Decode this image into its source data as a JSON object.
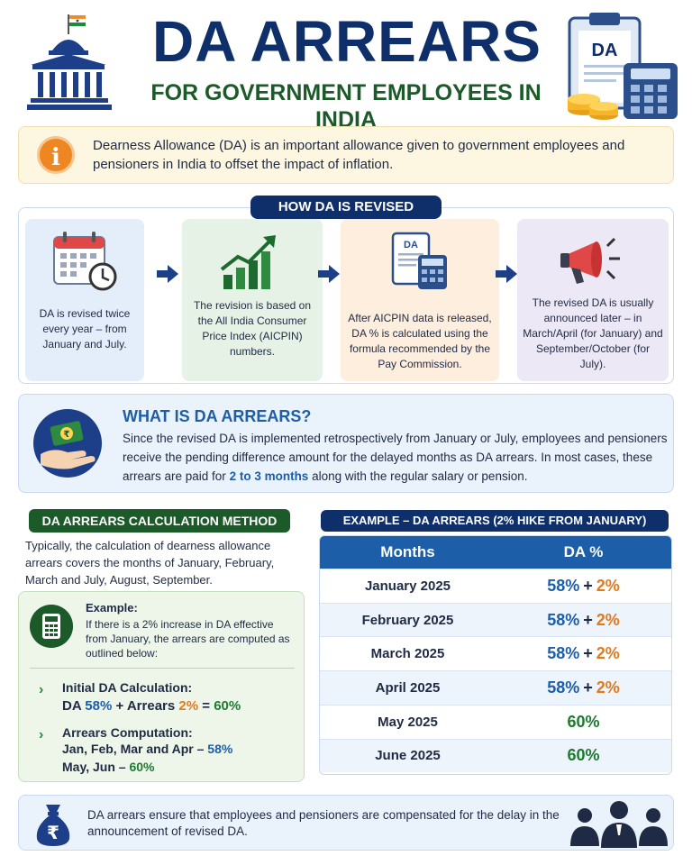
{
  "header": {
    "title": "DA ARREARS",
    "subtitle": "FOR GOVERNMENT EMPLOYEES IN INDIA",
    "clipboard_label": "DA"
  },
  "intro": {
    "icon": "info-icon",
    "text": "Dearness Allowance (DA) is an important allowance given to government employees and pensioners in India to offset the impact of inflation."
  },
  "how": {
    "title": "HOW DA IS REVISED",
    "steps": [
      {
        "icon": "calendar-icon",
        "text": "DA is revised twice every year – from January and July."
      },
      {
        "icon": "growth-chart-icon",
        "text": "The revision is based on the All India Consumer Price Index (AICPIN) numbers."
      },
      {
        "icon": "calculator-document-icon",
        "text": "After AICPIN data is released, DA % is calculated using the formula recommended by the Pay Commission."
      },
      {
        "icon": "megaphone-icon",
        "text": "The revised DA is usually announced later – in March/April (for January) and September/October (for July)."
      }
    ],
    "doc_label": "DA"
  },
  "what": {
    "title": "WHAT IS DA ARREARS?",
    "text_before": "Since the revised DA is implemented retrospectively from January or July, employees and pensioners receive the pending difference amount for the delayed months as DA arrears. In most cases, these arrears are paid for ",
    "highlight": "2 to 3 months",
    "text_after": " along with the regular salary or pension."
  },
  "calc": {
    "title": "DA ARREARS CALCULATION METHOD",
    "intro": "Typically, the calculation of dearness allowance arrears covers the months of January, February, March and July, August, September.",
    "example_label": "Example:",
    "example_text": "If there is a 2% increase in DA effective from January, the arrears are computed as outlined below:",
    "initial_heading": "Initial DA Calculation:",
    "initial_prefix": "DA ",
    "initial_base": "58%",
    "initial_mid": " + Arrears ",
    "initial_arrears": "2%",
    "initial_eq": " = ",
    "initial_total": "60%",
    "arrears_heading": "Arrears Computation:",
    "arrears_line1_text": "Jan, Feb, Mar and Apr – ",
    "arrears_line1_value": "58%",
    "arrears_line2_text": "May, Jun – ",
    "arrears_line2_value": "60%"
  },
  "example_table": {
    "title": "EXAMPLE – DA ARREARS (2% HIKE FROM JANUARY)",
    "headers": [
      "Months",
      "DA %"
    ],
    "rows": [
      {
        "month": "January 2025",
        "base": "58%",
        "plus": "+",
        "hike": "2%",
        "total": ""
      },
      {
        "month": "February 2025",
        "base": "58%",
        "plus": "+",
        "hike": "2%",
        "total": ""
      },
      {
        "month": "March 2025",
        "base": "58%",
        "plus": "+",
        "hike": "2%",
        "total": ""
      },
      {
        "month": "April 2025",
        "base": "58%",
        "plus": "+",
        "hike": "2%",
        "total": ""
      },
      {
        "month": "May 2025",
        "base": "",
        "plus": "",
        "hike": "",
        "total": "60%"
      },
      {
        "month": "June 2025",
        "base": "",
        "plus": "",
        "hike": "",
        "total": "60%"
      }
    ]
  },
  "footer": {
    "icon": "rupee-bag-icon",
    "currency_symbol": "₹",
    "text": "DA arrears ensure that employees and pensioners are compensated for the delay in the announcement of revised DA."
  },
  "colors": {
    "navy": "#0f2f6b",
    "green": "#1d5a2a",
    "blue": "#1d5ea8",
    "orange": "#e07a1f",
    "value_green": "#1d7a30"
  }
}
